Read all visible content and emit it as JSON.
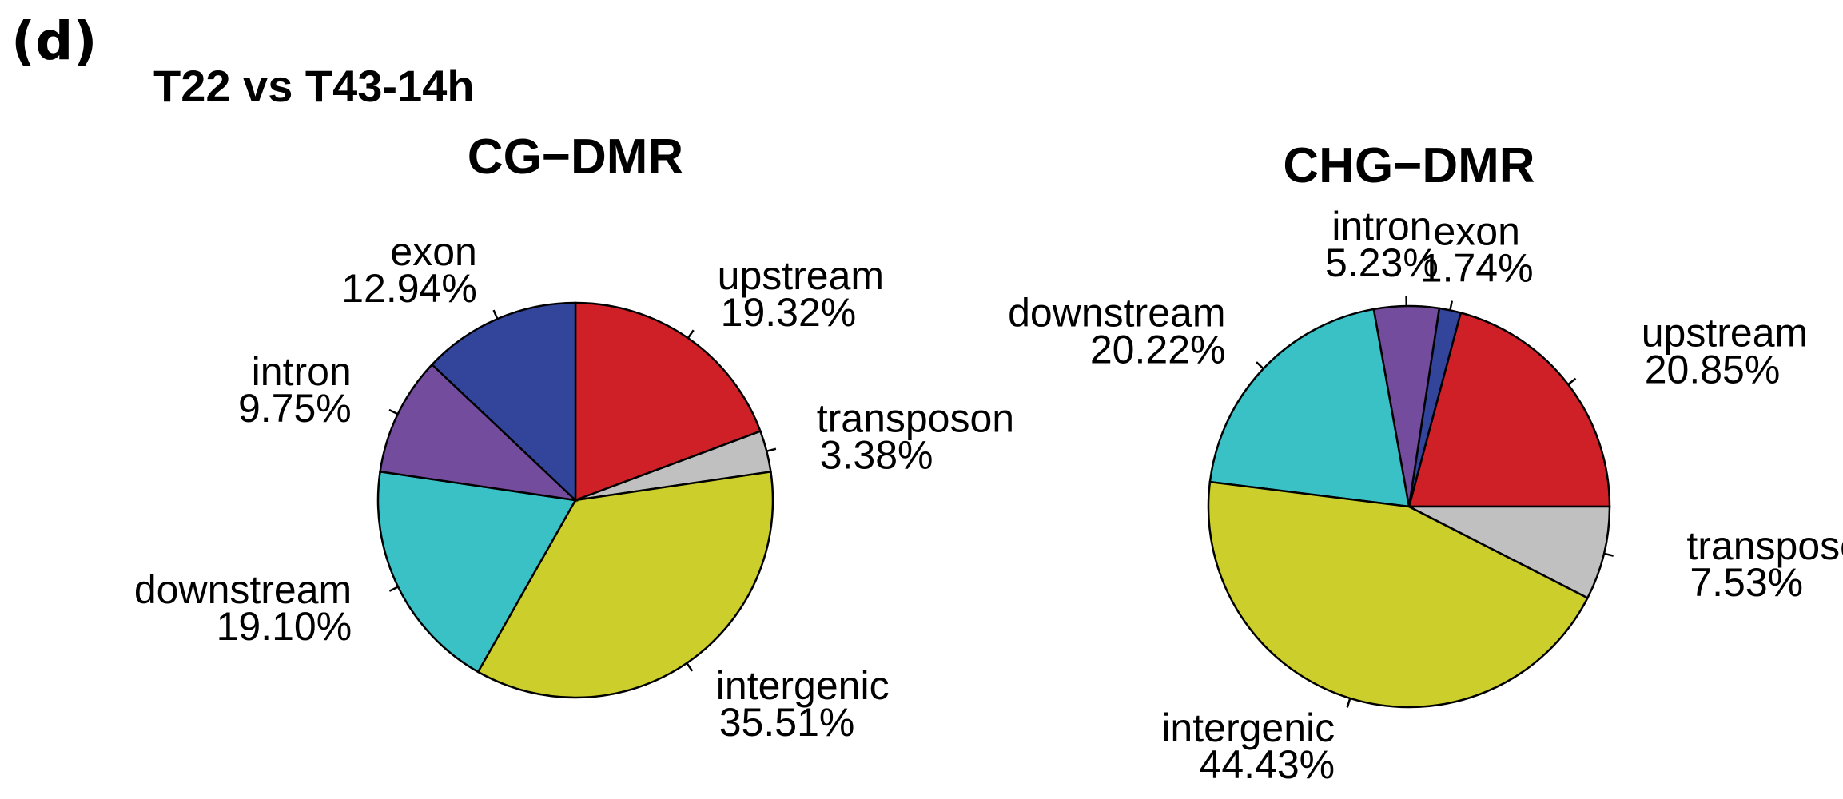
{
  "panel_label": "(d)",
  "figure_title": "T22 vs  T43-14h",
  "colors": {
    "upstream": "#cf2027",
    "transposon": "#c0c0c0",
    "intergenic": "#cccf2b",
    "downstream": "#3ac1c6",
    "intron": "#744c9d",
    "exon": "#33449b",
    "outline": "#000000"
  },
  "chart_data": [
    {
      "type": "pie",
      "title": "CG−DMR",
      "start": "top, clockwise",
      "slices": [
        {
          "name": "upstream",
          "value": 19.32,
          "label": "19.32%"
        },
        {
          "name": "transposon",
          "value": 3.38,
          "label": "3.38%"
        },
        {
          "name": "intergenic",
          "value": 35.51,
          "label": "35.51%"
        },
        {
          "name": "downstream",
          "value": 19.1,
          "label": "19.10%"
        },
        {
          "name": "intron",
          "value": 9.75,
          "label": "9.75%"
        },
        {
          "name": "exon",
          "value": 12.94,
          "label": "12.94%"
        }
      ]
    },
    {
      "type": "pie",
      "title": "CHG−DMR",
      "start": "right, counter-clockwise",
      "slices": [
        {
          "name": "upstream",
          "value": 20.85,
          "label": "20.85%"
        },
        {
          "name": "exon",
          "value": 1.74,
          "label": "1.74%"
        },
        {
          "name": "intron",
          "value": 5.23,
          "label": "5.23%"
        },
        {
          "name": "downstream",
          "value": 20.22,
          "label": "20.22%"
        },
        {
          "name": "intergenic",
          "value": 44.43,
          "label": "44.43%"
        },
        {
          "name": "transposon",
          "value": 7.53,
          "label": "7.53%"
        }
      ]
    }
  ]
}
